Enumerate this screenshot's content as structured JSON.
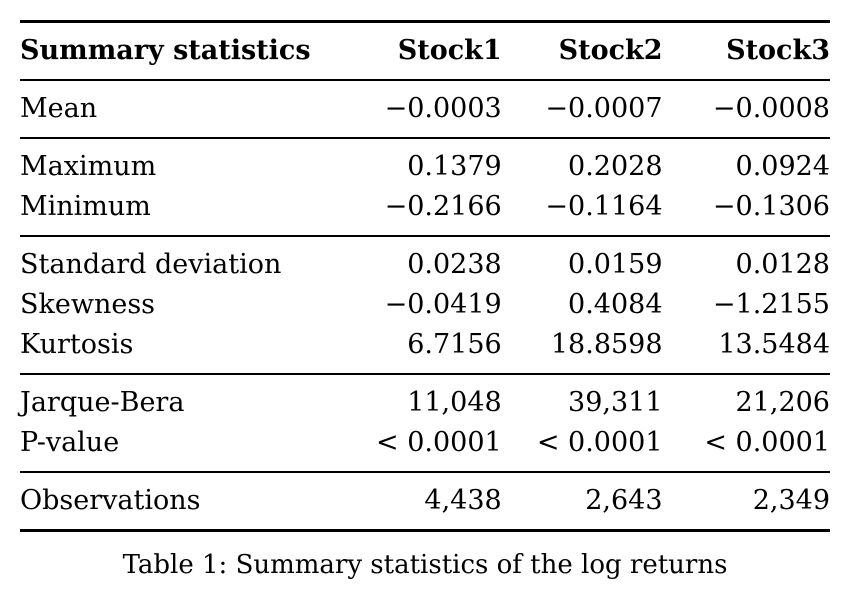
{
  "table": {
    "header": {
      "label": "Summary statistics",
      "columns": [
        "Stock1",
        "Stock2",
        "Stock3"
      ]
    },
    "groups": [
      {
        "rows": [
          {
            "label": "Mean",
            "values": [
              "−0.0003",
              "−0.0007",
              "−0.0008"
            ]
          }
        ]
      },
      {
        "rows": [
          {
            "label": "Maximum",
            "values": [
              "0.1379",
              "0.2028",
              "0.0924"
            ]
          },
          {
            "label": "Minimum",
            "values": [
              "−0.2166",
              "−0.1164",
              "−0.1306"
            ]
          }
        ]
      },
      {
        "rows": [
          {
            "label": "Standard deviation",
            "values": [
              "0.0238",
              "0.0159",
              "0.0128"
            ]
          },
          {
            "label": "Skewness",
            "values": [
              "−0.0419",
              "0.4084",
              "−1.2155"
            ]
          },
          {
            "label": "Kurtosis",
            "values": [
              "6.7156",
              "18.8598",
              "13.5484"
            ]
          }
        ]
      },
      {
        "rows": [
          {
            "label": "Jarque-Bera",
            "values": [
              "11,048",
              "39,311",
              "21,206"
            ]
          },
          {
            "label": "P-value",
            "values": [
              "< 0.0001",
              "< 0.0001",
              "< 0.0001"
            ]
          }
        ]
      },
      {
        "rows": [
          {
            "label": "Observations",
            "values": [
              "4,438",
              "2,643",
              "2,349"
            ]
          }
        ]
      }
    ],
    "caption": "Table 1: Summary statistics of the log returns",
    "text_color": "#000000",
    "background_color": "#ffffff"
  },
  "chart_data": {
    "type": "table",
    "title": "Table 1: Summary statistics of the log returns",
    "columns": [
      "Summary statistics",
      "Stock1",
      "Stock2",
      "Stock3"
    ],
    "rows": [
      [
        "Mean",
        "−0.0003",
        "−0.0007",
        "−0.0008"
      ],
      [
        "Maximum",
        "0.1379",
        "0.2028",
        "0.0924"
      ],
      [
        "Minimum",
        "−0.2166",
        "−0.1164",
        "−0.1306"
      ],
      [
        "Standard deviation",
        "0.0238",
        "0.0159",
        "0.0128"
      ],
      [
        "Skewness",
        "−0.0419",
        "0.4084",
        "−1.2155"
      ],
      [
        "Kurtosis",
        "6.7156",
        "18.8598",
        "13.5484"
      ],
      [
        "Jarque-Bera",
        "11,048",
        "39,311",
        "21,206"
      ],
      [
        "P-value",
        "< 0.0001",
        "< 0.0001",
        "< 0.0001"
      ],
      [
        "Observations",
        "4,438",
        "2,643",
        "2,349"
      ]
    ]
  }
}
